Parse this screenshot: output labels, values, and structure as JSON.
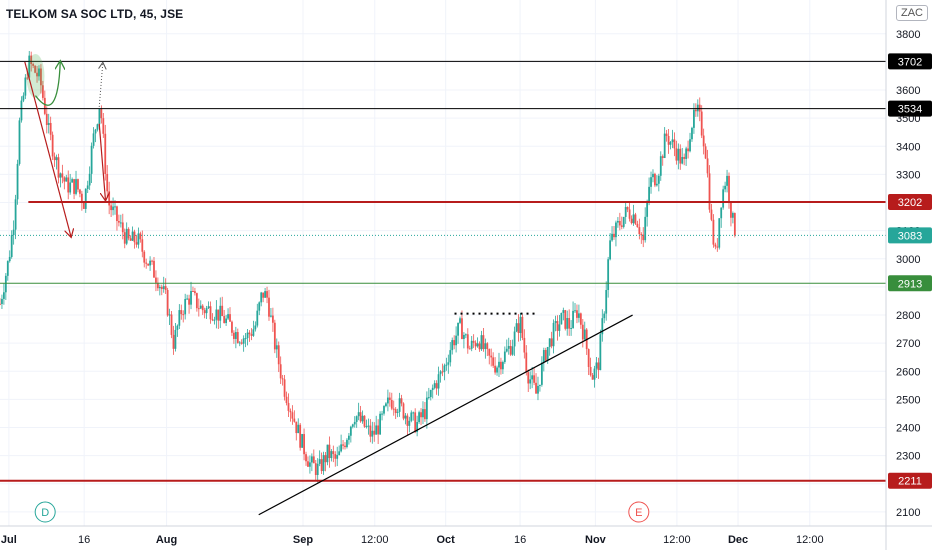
{
  "header": {
    "title": "TELKOM SA SOC LTD, 45, JSE",
    "currency": "ZAC"
  },
  "colors": {
    "up": "#26a69a",
    "down": "#ef5350",
    "resistance_red": "#b71c1c",
    "support_green": "#388e3c",
    "black_line": "#000000",
    "last_price": "#26a69a",
    "grid": "#f0f3fa",
    "axis_text": "#131722"
  },
  "chart_data": {
    "type": "candlestick",
    "title": "TELKOM SA SOC LTD, 45, JSE",
    "ylim": [
      2050,
      3920
    ],
    "y_ticks": [
      2100,
      2200,
      2300,
      2400,
      2500,
      2600,
      2700,
      2800,
      2900,
      3000,
      3100,
      3200,
      3300,
      3400,
      3500,
      3600,
      3700,
      3800
    ],
    "x_ticks": [
      "Jul",
      "16",
      "Aug",
      "Sep",
      "12:00",
      "Oct",
      "16",
      "Nov",
      "12:00",
      "Dec",
      "12:00"
    ],
    "x_range": [
      0,
      100
    ],
    "x_tick_positions": [
      1,
      9.5,
      18.8,
      34.2,
      42.3,
      50.3,
      58.7,
      67.2,
      76.4,
      83.3,
      91.4
    ],
    "horizontal_levels": [
      {
        "value": 3702,
        "label": "3702",
        "color": "#000000"
      },
      {
        "value": 3534,
        "label": "3534",
        "color": "#000000"
      },
      {
        "value": 3202,
        "label": "3202",
        "color": "#b71c1c"
      },
      {
        "value": 2913,
        "label": "2913",
        "color": "#388e3c"
      },
      {
        "value": 2211,
        "label": "2211",
        "color": "#b71c1c"
      }
    ],
    "last_price": {
      "value": 3083,
      "label": "3083"
    },
    "trendline": {
      "from": [
        29.2,
        2090
      ],
      "to": [
        71.4,
        2800
      ]
    },
    "dotted_level": {
      "from": [
        51.3,
        2805
      ],
      "to": [
        60.6,
        2805
      ]
    },
    "event_markers": [
      {
        "label": "D",
        "x": 5.1,
        "color": "#26a69a"
      },
      {
        "label": "E",
        "x": 72.1,
        "color": "#ef5350"
      }
    ],
    "price_path": [
      [
        0,
        2840
      ],
      [
        1,
        3000
      ],
      [
        1.6,
        3150
      ],
      [
        2.2,
        3480
      ],
      [
        3.2,
        3700
      ],
      [
        4.5,
        3640
      ],
      [
        5.5,
        3450
      ],
      [
        6.5,
        3330
      ],
      [
        7.5,
        3260
      ],
      [
        8.6,
        3260
      ],
      [
        9.5,
        3200
      ],
      [
        10.5,
        3420
      ],
      [
        11.3,
        3560
      ],
      [
        12.2,
        3200
      ],
      [
        13.5,
        3120
      ],
      [
        14.5,
        3060
      ],
      [
        15.5,
        3070
      ],
      [
        16.5,
        3000
      ],
      [
        17.8,
        2930
      ],
      [
        18.8,
        2850
      ],
      [
        19.6,
        2700
      ],
      [
        20.5,
        2820
      ],
      [
        21.5,
        2870
      ],
      [
        22.8,
        2820
      ],
      [
        23.8,
        2820
      ],
      [
        24.8,
        2800
      ],
      [
        25.8,
        2770
      ],
      [
        26.8,
        2730
      ],
      [
        27.8,
        2720
      ],
      [
        28.8,
        2760
      ],
      [
        29.6,
        2880
      ],
      [
        30.2,
        2860
      ],
      [
        31.0,
        2700
      ],
      [
        32.0,
        2550
      ],
      [
        33.0,
        2450
      ],
      [
        34.0,
        2350
      ],
      [
        35.0,
        2270
      ],
      [
        36.0,
        2250
      ],
      [
        37.0,
        2310
      ],
      [
        38.0,
        2280
      ],
      [
        39.0,
        2360
      ],
      [
        40.0,
        2450
      ],
      [
        41.0,
        2410
      ],
      [
        42.0,
        2370
      ],
      [
        43.0,
        2420
      ],
      [
        44.0,
        2500
      ],
      [
        45.0,
        2480
      ],
      [
        46.0,
        2440
      ],
      [
        47.0,
        2410
      ],
      [
        48.0,
        2460
      ],
      [
        49.0,
        2550
      ],
      [
        50.0,
        2600
      ],
      [
        51.0,
        2700
      ],
      [
        52.0,
        2760
      ],
      [
        53.0,
        2680
      ],
      [
        54.0,
        2720
      ],
      [
        55.0,
        2650
      ],
      [
        56.0,
        2620
      ],
      [
        57.0,
        2660
      ],
      [
        57.8,
        2700
      ],
      [
        58.7,
        2780
      ],
      [
        59.5,
        2600
      ],
      [
        60.5,
        2520
      ],
      [
        61.5,
        2660
      ],
      [
        62.5,
        2740
      ],
      [
        63.5,
        2790
      ],
      [
        64.3,
        2760
      ],
      [
        65.2,
        2820
      ],
      [
        66.0,
        2720
      ],
      [
        66.8,
        2580
      ],
      [
        67.5,
        2620
      ],
      [
        68.3,
        2860
      ],
      [
        68.8,
        3050
      ],
      [
        69.8,
        3120
      ],
      [
        70.8,
        3170
      ],
      [
        71.8,
        3150
      ],
      [
        72.6,
        3060
      ],
      [
        73.3,
        3270
      ],
      [
        74.2,
        3300
      ],
      [
        75.2,
        3440
      ],
      [
        76.4,
        3380
      ],
      [
        77.2,
        3330
      ],
      [
        78.0,
        3480
      ],
      [
        78.8,
        3520
      ],
      [
        79.6,
        3400
      ],
      [
        80.3,
        3120
      ],
      [
        80.8,
        3000
      ],
      [
        81.3,
        3200
      ],
      [
        82.0,
        3300
      ],
      [
        82.6,
        3150
      ],
      [
        83.0,
        3083
      ]
    ],
    "annotations": {
      "red_arrows": [
        {
          "from": [
            2.8,
            3700
          ],
          "to": [
            8.0,
            3080
          ]
        },
        {
          "from": [
            11.2,
            3480
          ],
          "to": [
            11.9,
            3210
          ]
        }
      ],
      "green_arc": {
        "from": [
          4.0,
          3580
        ],
        "to": [
          6.8,
          3700
        ]
      },
      "dotted_arrow": {
        "from": [
          11.2,
          3540
        ],
        "to": [
          11.6,
          3695
        ]
      },
      "highlight_ellipse": {
        "center": [
          4.0,
          3650
        ]
      }
    }
  }
}
